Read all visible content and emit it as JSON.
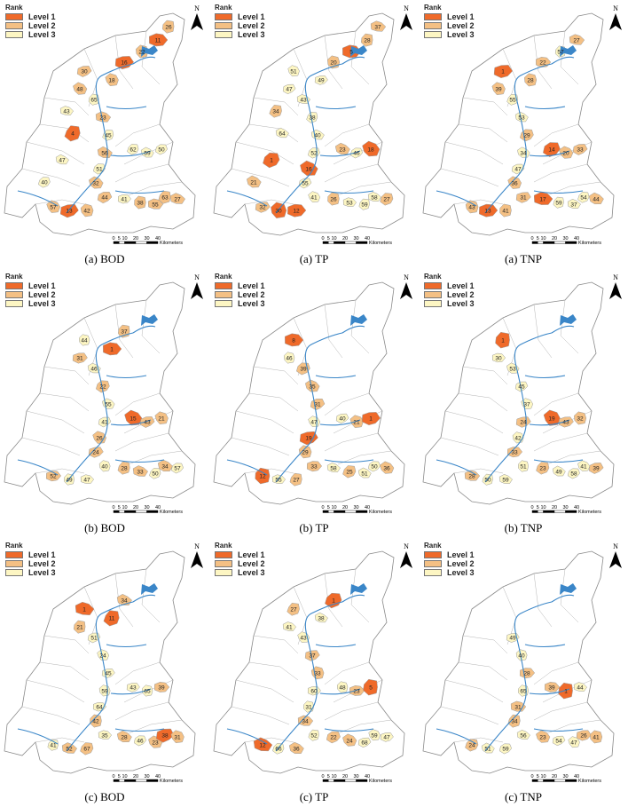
{
  "legend": {
    "title": "Rank",
    "levels": [
      {
        "label": "Level 1",
        "color": "#ef6a2a"
      },
      {
        "label": "Level 2",
        "color": "#f4c084"
      },
      {
        "label": "Level 3",
        "color": "#fdf6c3"
      }
    ]
  },
  "north_label": "N",
  "scale": {
    "ticks": [
      "0",
      "5",
      "10",
      "20",
      "30",
      "40"
    ],
    "unit": "Kilometers"
  },
  "colors": {
    "outline": "#8a8a8a",
    "river": "#3a86c8",
    "fill_default": "#ffffff"
  },
  "panels": [
    {
      "caption": "(a) BOD",
      "labels": [
        {
          "t": "65",
          "l": 3
        },
        {
          "t": "23",
          "l": 2
        },
        {
          "t": "45",
          "l": 3
        },
        {
          "t": "56",
          "l": 2
        },
        {
          "t": "51",
          "l": 3
        },
        {
          "t": "32",
          "l": 2
        },
        {
          "t": "44",
          "l": 2
        },
        {
          "t": "57",
          "l": 2
        },
        {
          "t": "13",
          "l": 1
        },
        {
          "t": "42",
          "l": 2
        },
        {
          "t": "41",
          "l": 3
        },
        {
          "t": "38",
          "l": 2
        },
        {
          "t": "55",
          "l": 2
        },
        {
          "t": "63",
          "l": 2
        },
        {
          "t": "27",
          "l": 2
        },
        {
          "t": "62",
          "l": 3
        },
        {
          "t": "59",
          "l": 3
        },
        {
          "t": "50",
          "l": 3
        },
        {
          "t": "48",
          "l": 2
        },
        {
          "t": "30",
          "l": 2
        },
        {
          "t": "18",
          "l": 2
        },
        {
          "t": "16",
          "l": 1
        },
        {
          "t": "22",
          "l": 2
        },
        {
          "t": "11",
          "l": 1
        },
        {
          "t": "26",
          "l": 2
        },
        {
          "t": "43",
          "l": 3
        },
        {
          "t": "4",
          "l": 1
        },
        {
          "t": "47",
          "l": 3
        },
        {
          "t": "40",
          "l": 3
        }
      ]
    },
    {
      "caption": "(a) TP",
      "labels": [
        {
          "t": "43",
          "l": 3
        },
        {
          "t": "38",
          "l": 3
        },
        {
          "t": "40",
          "l": 3
        },
        {
          "t": "52",
          "l": 3
        },
        {
          "t": "16",
          "l": 1
        },
        {
          "t": "55",
          "l": 3
        },
        {
          "t": "41",
          "l": 3
        },
        {
          "t": "32",
          "l": 2
        },
        {
          "t": "30",
          "l": 1
        },
        {
          "t": "12",
          "l": 1
        },
        {
          "t": "26",
          "l": 2
        },
        {
          "t": "53",
          "l": 3
        },
        {
          "t": "59",
          "l": 3
        },
        {
          "t": "58",
          "l": 3
        },
        {
          "t": "27",
          "l": 2
        },
        {
          "t": "23",
          "l": 2
        },
        {
          "t": "46",
          "l": 3
        },
        {
          "t": "18",
          "l": 1
        },
        {
          "t": "47",
          "l": 3
        },
        {
          "t": "51",
          "l": 3
        },
        {
          "t": "49",
          "l": 3
        },
        {
          "t": "20",
          "l": 2
        },
        {
          "t": "5",
          "l": 1
        },
        {
          "t": "28",
          "l": 2
        },
        {
          "t": "37",
          "l": 2
        },
        {
          "t": "34",
          "l": 2
        },
        {
          "t": "64",
          "l": 3
        },
        {
          "t": "1",
          "l": 1
        },
        {
          "t": "21",
          "l": 2
        }
      ]
    },
    {
      "caption": "(a) TNP",
      "labels": [
        {
          "t": "55",
          "l": 3
        },
        {
          "t": "53",
          "l": 3
        },
        {
          "t": "29",
          "l": 2
        },
        {
          "t": "34",
          "l": 3
        },
        {
          "t": "47",
          "l": 3
        },
        {
          "t": "36",
          "l": 2
        },
        {
          "t": "31",
          "l": 2
        },
        {
          "t": "43",
          "l": 2
        },
        {
          "t": "13",
          "l": 1
        },
        {
          "t": "41",
          "l": 2
        },
        {
          "t": "17",
          "l": 1
        },
        {
          "t": "59",
          "l": 3
        },
        {
          "t": "37",
          "l": 3
        },
        {
          "t": "54",
          "l": 3
        },
        {
          "t": "44",
          "l": 2
        },
        {
          "t": "14",
          "l": 1
        },
        {
          "t": "20",
          "l": 2
        },
        {
          "t": "33",
          "l": 2
        },
        {
          "t": "39",
          "l": 2
        },
        {
          "t": "1",
          "l": 1
        },
        {
          "t": "28",
          "l": 2
        },
        {
          "t": "22",
          "l": 2
        },
        {
          "t": "57",
          "l": 3
        },
        {
          "t": "27",
          "l": 2
        }
      ]
    },
    {
      "caption": "(b) BOD",
      "labels": [
        {
          "t": "46",
          "l": 3
        },
        {
          "t": "22",
          "l": 2
        },
        {
          "t": "55",
          "l": 3
        },
        {
          "t": "41",
          "l": 3
        },
        {
          "t": "26",
          "l": 2
        },
        {
          "t": "24",
          "l": 2
        },
        {
          "t": "40",
          "l": 3
        },
        {
          "t": "52",
          "l": 2
        },
        {
          "t": "49",
          "l": 3
        },
        {
          "t": "47",
          "l": 3
        },
        {
          "t": "28",
          "l": 2
        },
        {
          "t": "33",
          "l": 2
        },
        {
          "t": "50",
          "l": 3
        },
        {
          "t": "34",
          "l": 2
        },
        {
          "t": "57",
          "l": 3
        },
        {
          "t": "15",
          "l": 1
        },
        {
          "t": "43",
          "l": 2
        },
        {
          "t": "21",
          "l": 2
        },
        {
          "t": "31",
          "l": 2
        },
        {
          "t": "44",
          "l": 3
        },
        {
          "t": "1",
          "l": 1
        },
        {
          "t": "37",
          "l": 2
        }
      ]
    },
    {
      "caption": "(b) TP",
      "labels": [
        {
          "t": "39",
          "l": 2
        },
        {
          "t": "35",
          "l": 2
        },
        {
          "t": "31",
          "l": 2
        },
        {
          "t": "47",
          "l": 3
        },
        {
          "t": "19",
          "l": 1
        },
        {
          "t": "29",
          "l": 2
        },
        {
          "t": "33",
          "l": 2
        },
        {
          "t": "12",
          "l": 1
        },
        {
          "t": "55",
          "l": 3
        },
        {
          "t": "27",
          "l": 2
        },
        {
          "t": "58",
          "l": 3
        },
        {
          "t": "25",
          "l": 2
        },
        {
          "t": "51",
          "l": 3
        },
        {
          "t": "50",
          "l": 3
        },
        {
          "t": "36",
          "l": 2
        },
        {
          "t": "40",
          "l": 3
        },
        {
          "t": "21",
          "l": 2
        },
        {
          "t": "1",
          "l": 1
        },
        {
          "t": "46",
          "l": 3
        },
        {
          "t": "8",
          "l": 1
        }
      ]
    },
    {
      "caption": "(b) TNP",
      "labels": [
        {
          "t": "53",
          "l": 3
        },
        {
          "t": "45",
          "l": 3
        },
        {
          "t": "37",
          "l": 3
        },
        {
          "t": "24",
          "l": 2
        },
        {
          "t": "42",
          "l": 3
        },
        {
          "t": "33",
          "l": 2
        },
        {
          "t": "51",
          "l": 3
        },
        {
          "t": "28",
          "l": 2
        },
        {
          "t": "50",
          "l": 3
        },
        {
          "t": "59",
          "l": 3
        },
        {
          "t": "23",
          "l": 2
        },
        {
          "t": "49",
          "l": 3
        },
        {
          "t": "58",
          "l": 3
        },
        {
          "t": "41",
          "l": 3
        },
        {
          "t": "39",
          "l": 2
        },
        {
          "t": "19",
          "l": 1
        },
        {
          "t": "43",
          "l": 2
        },
        {
          "t": "32",
          "l": 2
        },
        {
          "t": "30",
          "l": 3
        },
        {
          "t": "1",
          "l": 1
        }
      ]
    },
    {
      "caption": "(c) BOD",
      "labels": [
        {
          "t": "51",
          "l": 3
        },
        {
          "t": "24",
          "l": 3
        },
        {
          "t": "45",
          "l": 3
        },
        {
          "t": "59",
          "l": 3
        },
        {
          "t": "64",
          "l": 3
        },
        {
          "t": "42",
          "l": 2
        },
        {
          "t": "35",
          "l": 3
        },
        {
          "t": "41",
          "l": 3
        },
        {
          "t": "52",
          "l": 2
        },
        {
          "t": "67",
          "l": 2
        },
        {
          "t": "28",
          "l": 2
        },
        {
          "t": "46",
          "l": 3
        },
        {
          "t": "23",
          "l": 2
        },
        {
          "t": "38",
          "l": 1
        },
        {
          "t": "31",
          "l": 2
        },
        {
          "t": "43",
          "l": 3
        },
        {
          "t": "65",
          "l": 3
        },
        {
          "t": "39",
          "l": 2
        },
        {
          "t": "21",
          "l": 2
        },
        {
          "t": "1",
          "l": 1
        },
        {
          "t": "11",
          "l": 1
        },
        {
          "t": "34",
          "l": 2
        }
      ]
    },
    {
      "caption": "(c) TP",
      "labels": [
        {
          "t": "43",
          "l": 3
        },
        {
          "t": "37",
          "l": 2
        },
        {
          "t": "33",
          "l": 2
        },
        {
          "t": "60",
          "l": 3
        },
        {
          "t": "31",
          "l": 3
        },
        {
          "t": "34",
          "l": 2
        },
        {
          "t": "52",
          "l": 3
        },
        {
          "t": "12",
          "l": 1
        },
        {
          "t": "66",
          "l": 3
        },
        {
          "t": "36",
          "l": 2
        },
        {
          "t": "22",
          "l": 2
        },
        {
          "t": "24",
          "l": 2
        },
        {
          "t": "68",
          "l": 3
        },
        {
          "t": "59",
          "l": 3
        },
        {
          "t": "47",
          "l": 3
        },
        {
          "t": "48",
          "l": 3
        },
        {
          "t": "23",
          "l": 2
        },
        {
          "t": "5",
          "l": 1
        },
        {
          "t": "41",
          "l": 3
        },
        {
          "t": "27",
          "l": 2
        },
        {
          "t": "38",
          "l": 3
        },
        {
          "t": "1",
          "l": 1
        }
      ]
    },
    {
      "caption": "(c) TNP",
      "labels": [
        {
          "t": "49",
          "l": 3
        },
        {
          "t": "40",
          "l": 3
        },
        {
          "t": "28",
          "l": 2
        },
        {
          "t": "65",
          "l": 3
        },
        {
          "t": "31",
          "l": 2
        },
        {
          "t": "34",
          "l": 2
        },
        {
          "t": "56",
          "l": 3
        },
        {
          "t": "24",
          "l": 2
        },
        {
          "t": "51",
          "l": 3
        },
        {
          "t": "59",
          "l": 3
        },
        {
          "t": "23",
          "l": 2
        },
        {
          "t": "54",
          "l": 3
        },
        {
          "t": "47",
          "l": 3
        },
        {
          "t": "26",
          "l": 2
        },
        {
          "t": "41",
          "l": 2
        },
        {
          "t": "39",
          "l": 2
        },
        {
          "t": "1",
          "l": 1
        },
        {
          "t": "44",
          "l": 3
        }
      ]
    }
  ]
}
